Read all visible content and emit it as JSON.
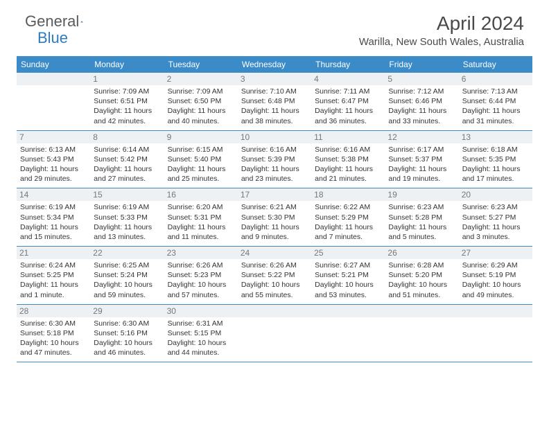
{
  "logo": {
    "general": "General",
    "blue": "Blue"
  },
  "title": "April 2024",
  "location": "Warilla, New South Wales, Australia",
  "weekdays": [
    "Sunday",
    "Monday",
    "Tuesday",
    "Wednesday",
    "Thursday",
    "Friday",
    "Saturday"
  ],
  "colors": {
    "header_bg": "#3b8bc9",
    "header_text": "#ffffff",
    "daynum_bg": "#eef1f3",
    "daynum_text": "#777777",
    "body_text": "#333333",
    "logo_gray": "#5a5a5a",
    "logo_blue": "#2f7bbf",
    "title_color": "#4a4a4a"
  },
  "weeks": [
    [
      {
        "num": "",
        "sunrise": "",
        "sunset": "",
        "daylight": ""
      },
      {
        "num": "1",
        "sunrise": "Sunrise: 7:09 AM",
        "sunset": "Sunset: 6:51 PM",
        "daylight": "Daylight: 11 hours and 42 minutes."
      },
      {
        "num": "2",
        "sunrise": "Sunrise: 7:09 AM",
        "sunset": "Sunset: 6:50 PM",
        "daylight": "Daylight: 11 hours and 40 minutes."
      },
      {
        "num": "3",
        "sunrise": "Sunrise: 7:10 AM",
        "sunset": "Sunset: 6:48 PM",
        "daylight": "Daylight: 11 hours and 38 minutes."
      },
      {
        "num": "4",
        "sunrise": "Sunrise: 7:11 AM",
        "sunset": "Sunset: 6:47 PM",
        "daylight": "Daylight: 11 hours and 36 minutes."
      },
      {
        "num": "5",
        "sunrise": "Sunrise: 7:12 AM",
        "sunset": "Sunset: 6:46 PM",
        "daylight": "Daylight: 11 hours and 33 minutes."
      },
      {
        "num": "6",
        "sunrise": "Sunrise: 7:13 AM",
        "sunset": "Sunset: 6:44 PM",
        "daylight": "Daylight: 11 hours and 31 minutes."
      }
    ],
    [
      {
        "num": "7",
        "sunrise": "Sunrise: 6:13 AM",
        "sunset": "Sunset: 5:43 PM",
        "daylight": "Daylight: 11 hours and 29 minutes."
      },
      {
        "num": "8",
        "sunrise": "Sunrise: 6:14 AM",
        "sunset": "Sunset: 5:42 PM",
        "daylight": "Daylight: 11 hours and 27 minutes."
      },
      {
        "num": "9",
        "sunrise": "Sunrise: 6:15 AM",
        "sunset": "Sunset: 5:40 PM",
        "daylight": "Daylight: 11 hours and 25 minutes."
      },
      {
        "num": "10",
        "sunrise": "Sunrise: 6:16 AM",
        "sunset": "Sunset: 5:39 PM",
        "daylight": "Daylight: 11 hours and 23 minutes."
      },
      {
        "num": "11",
        "sunrise": "Sunrise: 6:16 AM",
        "sunset": "Sunset: 5:38 PM",
        "daylight": "Daylight: 11 hours and 21 minutes."
      },
      {
        "num": "12",
        "sunrise": "Sunrise: 6:17 AM",
        "sunset": "Sunset: 5:37 PM",
        "daylight": "Daylight: 11 hours and 19 minutes."
      },
      {
        "num": "13",
        "sunrise": "Sunrise: 6:18 AM",
        "sunset": "Sunset: 5:35 PM",
        "daylight": "Daylight: 11 hours and 17 minutes."
      }
    ],
    [
      {
        "num": "14",
        "sunrise": "Sunrise: 6:19 AM",
        "sunset": "Sunset: 5:34 PM",
        "daylight": "Daylight: 11 hours and 15 minutes."
      },
      {
        "num": "15",
        "sunrise": "Sunrise: 6:19 AM",
        "sunset": "Sunset: 5:33 PM",
        "daylight": "Daylight: 11 hours and 13 minutes."
      },
      {
        "num": "16",
        "sunrise": "Sunrise: 6:20 AM",
        "sunset": "Sunset: 5:31 PM",
        "daylight": "Daylight: 11 hours and 11 minutes."
      },
      {
        "num": "17",
        "sunrise": "Sunrise: 6:21 AM",
        "sunset": "Sunset: 5:30 PM",
        "daylight": "Daylight: 11 hours and 9 minutes."
      },
      {
        "num": "18",
        "sunrise": "Sunrise: 6:22 AM",
        "sunset": "Sunset: 5:29 PM",
        "daylight": "Daylight: 11 hours and 7 minutes."
      },
      {
        "num": "19",
        "sunrise": "Sunrise: 6:23 AM",
        "sunset": "Sunset: 5:28 PM",
        "daylight": "Daylight: 11 hours and 5 minutes."
      },
      {
        "num": "20",
        "sunrise": "Sunrise: 6:23 AM",
        "sunset": "Sunset: 5:27 PM",
        "daylight": "Daylight: 11 hours and 3 minutes."
      }
    ],
    [
      {
        "num": "21",
        "sunrise": "Sunrise: 6:24 AM",
        "sunset": "Sunset: 5:25 PM",
        "daylight": "Daylight: 11 hours and 1 minute."
      },
      {
        "num": "22",
        "sunrise": "Sunrise: 6:25 AM",
        "sunset": "Sunset: 5:24 PM",
        "daylight": "Daylight: 10 hours and 59 minutes."
      },
      {
        "num": "23",
        "sunrise": "Sunrise: 6:26 AM",
        "sunset": "Sunset: 5:23 PM",
        "daylight": "Daylight: 10 hours and 57 minutes."
      },
      {
        "num": "24",
        "sunrise": "Sunrise: 6:26 AM",
        "sunset": "Sunset: 5:22 PM",
        "daylight": "Daylight: 10 hours and 55 minutes."
      },
      {
        "num": "25",
        "sunrise": "Sunrise: 6:27 AM",
        "sunset": "Sunset: 5:21 PM",
        "daylight": "Daylight: 10 hours and 53 minutes."
      },
      {
        "num": "26",
        "sunrise": "Sunrise: 6:28 AM",
        "sunset": "Sunset: 5:20 PM",
        "daylight": "Daylight: 10 hours and 51 minutes."
      },
      {
        "num": "27",
        "sunrise": "Sunrise: 6:29 AM",
        "sunset": "Sunset: 5:19 PM",
        "daylight": "Daylight: 10 hours and 49 minutes."
      }
    ],
    [
      {
        "num": "28",
        "sunrise": "Sunrise: 6:30 AM",
        "sunset": "Sunset: 5:18 PM",
        "daylight": "Daylight: 10 hours and 47 minutes."
      },
      {
        "num": "29",
        "sunrise": "Sunrise: 6:30 AM",
        "sunset": "Sunset: 5:16 PM",
        "daylight": "Daylight: 10 hours and 46 minutes."
      },
      {
        "num": "30",
        "sunrise": "Sunrise: 6:31 AM",
        "sunset": "Sunset: 5:15 PM",
        "daylight": "Daylight: 10 hours and 44 minutes."
      },
      {
        "num": "",
        "sunrise": "",
        "sunset": "",
        "daylight": ""
      },
      {
        "num": "",
        "sunrise": "",
        "sunset": "",
        "daylight": ""
      },
      {
        "num": "",
        "sunrise": "",
        "sunset": "",
        "daylight": ""
      },
      {
        "num": "",
        "sunrise": "",
        "sunset": "",
        "daylight": ""
      }
    ]
  ]
}
